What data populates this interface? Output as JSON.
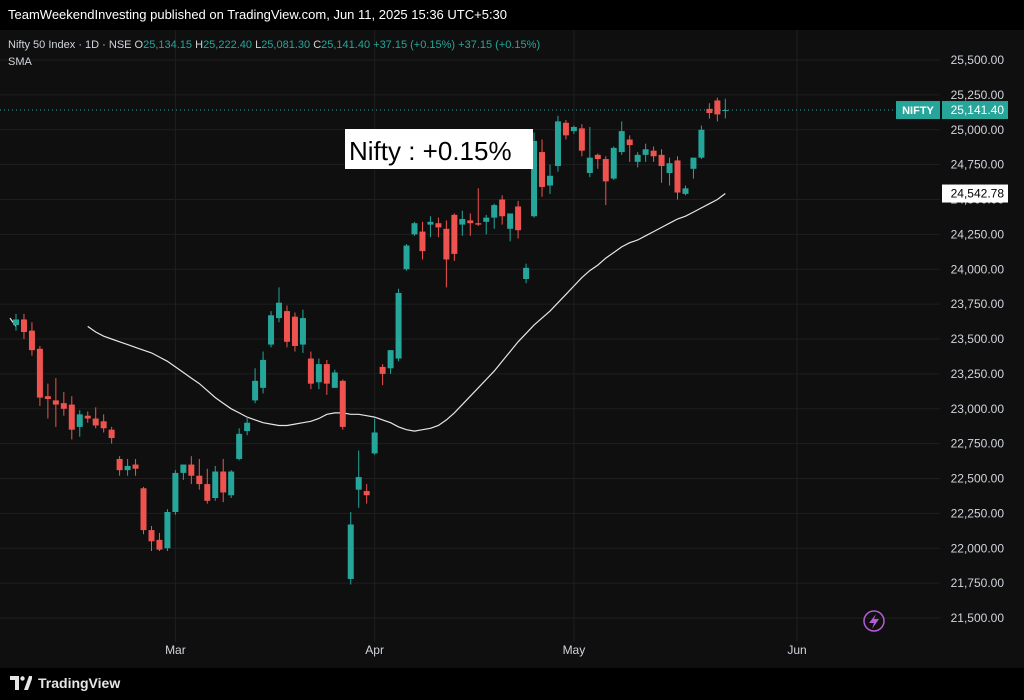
{
  "header": {
    "published_text": "TeamWeekendInvesting published on TradingView.com, Jun 11, 2025 15:36 UTC+5:30"
  },
  "legend": {
    "symbol": "Nifty 50 Index · 1D · NSE",
    "o_label": "O",
    "o_value": "25,134.15",
    "h_label": "H",
    "h_value": "25,222.40",
    "l_label": "L",
    "l_value": "25,081.30",
    "c_label": "C",
    "c_value": "25,141.40",
    "change": "+37.15 (+0.15%)",
    "change2": "+37.15 (+0.15%)",
    "indicator": "SMA"
  },
  "annotation": {
    "text": "Nifty : +0.15%"
  },
  "price_tags": {
    "symbol_label": "NIFTY",
    "last_price": "25,141.40",
    "sma_value": "24,542.78"
  },
  "footer": {
    "brand": "TradingView"
  },
  "colors": {
    "up": "#26a69a",
    "down": "#ef5350",
    "background": "#0f0f0f",
    "sma": "#e6e6e6",
    "grid": "#1f1f1f",
    "axis_text": "#d1d4dc",
    "last_price_tag": "#26a69a"
  },
  "icons": {
    "replay": "lightning-icon",
    "logo": "tradingview-logo-icon"
  },
  "chart_data": {
    "type": "candlestick",
    "title": "Nifty 50 Index · 1D · NSE",
    "ylim": [
      21400,
      25600
    ],
    "y_ticks": [
      21500,
      21750,
      22000,
      22250,
      22500,
      22750,
      23000,
      23250,
      23500,
      23750,
      24000,
      24250,
      24500,
      24750,
      25000,
      25250,
      25500
    ],
    "y_tick_labels": [
      "21,500.00",
      "21,750.00",
      "22,000.00",
      "22,250.00",
      "22,500.00",
      "22,750.00",
      "23,000.00",
      "23,250.00",
      "23,500.00",
      "23,750.00",
      "24,000.00",
      "24,250.00",
      "24,500.00",
      "24,750.00",
      "25,000.00",
      "25,250.00",
      "25,500.00"
    ],
    "x_ticks": [
      {
        "label": "Mar",
        "index": 20
      },
      {
        "label": "Apr",
        "index": 45
      },
      {
        "label": "May",
        "index": 70
      },
      {
        "label": "Jun",
        "index": 98
      }
    ],
    "grid": true,
    "candles": [
      [
        23600,
        23680,
        23560,
        23640
      ],
      [
        23640,
        23680,
        23500,
        23550
      ],
      [
        23560,
        23620,
        23380,
        23420
      ],
      [
        23430,
        23450,
        23020,
        23080
      ],
      [
        23090,
        23180,
        22930,
        23070
      ],
      [
        23060,
        23220,
        22870,
        23030
      ],
      [
        23040,
        23120,
        22950,
        23000
      ],
      [
        23030,
        23090,
        22780,
        22850
      ],
      [
        22870,
        22990,
        22800,
        22960
      ],
      [
        22950,
        22980,
        22900,
        22930
      ],
      [
        22930,
        23010,
        22860,
        22880
      ],
      [
        22910,
        22960,
        22830,
        22860
      ],
      [
        22850,
        22870,
        22750,
        22790
      ],
      [
        22640,
        22660,
        22520,
        22560
      ],
      [
        22560,
        22640,
        22520,
        22590
      ],
      [
        22600,
        22640,
        22520,
        22570
      ],
      [
        22430,
        22440,
        22100,
        22130
      ],
      [
        22130,
        22160,
        21980,
        22050
      ],
      [
        22060,
        22110,
        21980,
        21990
      ],
      [
        22000,
        22280,
        21980,
        22260
      ],
      [
        22260,
        22560,
        22240,
        22540
      ],
      [
        22540,
        22600,
        22490,
        22600
      ],
      [
        22600,
        22660,
        22460,
        22520
      ],
      [
        22520,
        22640,
        22420,
        22460
      ],
      [
        22460,
        22570,
        22320,
        22340
      ],
      [
        22360,
        22590,
        22340,
        22550
      ],
      [
        22550,
        22640,
        22330,
        22400
      ],
      [
        22380,
        22560,
        22360,
        22550
      ],
      [
        22640,
        22860,
        22630,
        22820
      ],
      [
        22840,
        22940,
        22810,
        22900
      ],
      [
        23060,
        23290,
        23040,
        23200
      ],
      [
        23150,
        23410,
        23110,
        23350
      ],
      [
        23460,
        23700,
        23440,
        23670
      ],
      [
        23650,
        23870,
        23620,
        23760
      ],
      [
        23700,
        23740,
        23440,
        23480
      ],
      [
        23660,
        23690,
        23410,
        23450
      ],
      [
        23460,
        23710,
        23400,
        23650
      ],
      [
        23360,
        23410,
        23140,
        23180
      ],
      [
        23190,
        23360,
        23140,
        23320
      ],
      [
        23320,
        23350,
        23100,
        23180
      ],
      [
        23150,
        23280,
        23150,
        23260
      ],
      [
        23200,
        23210,
        22850,
        22870
      ],
      [
        21780,
        22260,
        21740,
        22170
      ],
      [
        22420,
        22700,
        22290,
        22510
      ],
      [
        22410,
        22460,
        22320,
        22380
      ],
      [
        22680,
        22930,
        22670,
        22830
      ],
      [
        23300,
        23320,
        23170,
        23250
      ],
      [
        23290,
        23420,
        23250,
        23420
      ],
      [
        23360,
        23860,
        23340,
        23830
      ],
      [
        24000,
        24180,
        23990,
        24170
      ],
      [
        24250,
        24340,
        24240,
        24330
      ],
      [
        24270,
        24340,
        24070,
        24130
      ],
      [
        24320,
        24380,
        24230,
        24340
      ],
      [
        24330,
        24370,
        24230,
        24300
      ],
      [
        24290,
        24350,
        23870,
        24070
      ],
      [
        24390,
        24400,
        24060,
        24110
      ],
      [
        24320,
        24420,
        24240,
        24360
      ],
      [
        24350,
        24400,
        24240,
        24330
      ],
      [
        24330,
        24580,
        24310,
        24320
      ],
      [
        24340,
        24390,
        24250,
        24370
      ],
      [
        24370,
        24470,
        24290,
        24460
      ],
      [
        24500,
        24530,
        24320,
        24380
      ],
      [
        24290,
        24380,
        24200,
        24400
      ],
      [
        24450,
        24490,
        24220,
        24280
      ],
      [
        23930,
        24040,
        23900,
        24010
      ],
      [
        24380,
        24980,
        24370,
        24920
      ],
      [
        24840,
        24930,
        24520,
        24590
      ],
      [
        24600,
        24750,
        24540,
        24670
      ],
      [
        24740,
        25100,
        24700,
        25060
      ],
      [
        25050,
        25070,
        24930,
        24960
      ],
      [
        24990,
        25030,
        24970,
        25020
      ],
      [
        25010,
        25040,
        24810,
        24850
      ],
      [
        24690,
        25020,
        24660,
        24800
      ],
      [
        24820,
        24830,
        24720,
        24790
      ],
      [
        24790,
        24810,
        24460,
        24630
      ],
      [
        24650,
        24880,
        24640,
        24870
      ],
      [
        24840,
        25060,
        24820,
        24990
      ],
      [
        24930,
        24960,
        24770,
        24890
      ],
      [
        24770,
        24840,
        24730,
        24820
      ],
      [
        24820,
        24900,
        24770,
        24860
      ],
      [
        24850,
        24880,
        24770,
        24810
      ],
      [
        24820,
        24860,
        24620,
        24740
      ],
      [
        24690,
        24800,
        24600,
        24760
      ],
      [
        24780,
        24810,
        24500,
        24550
      ],
      [
        24540,
        24600,
        24530,
        24580
      ],
      [
        24720,
        24770,
        24650,
        24800
      ],
      [
        24800,
        25030,
        24790,
        25000
      ],
      [
        25150,
        25190,
        25080,
        25120
      ],
      [
        25210,
        25230,
        25060,
        25110
      ],
      [
        25134.15,
        25222.4,
        25081.3,
        25141.4
      ]
    ],
    "sma_series": {
      "name": "SMA",
      "values": [
        23590,
        23550,
        23520,
        23500,
        23480,
        23460,
        23440,
        23420,
        23400,
        23370,
        23340,
        23300,
        23260,
        23220,
        23180,
        23130,
        23080,
        23040,
        23000,
        22970,
        22940,
        22920,
        22900,
        22890,
        22880,
        22880,
        22890,
        22900,
        22910,
        22930,
        22960,
        22970,
        22970,
        22960,
        22960,
        22950,
        22940,
        22920,
        22900,
        22870,
        22850,
        22840,
        22850,
        22860,
        22880,
        22920,
        22970,
        23030,
        23090,
        23150,
        23210,
        23270,
        23340,
        23410,
        23480,
        23540,
        23600,
        23650,
        23700,
        23760,
        23820,
        23880,
        23940,
        23990,
        24030,
        24080,
        24120,
        24160,
        24190,
        24210,
        24240,
        24270,
        24300,
        24330,
        24360,
        24380,
        24410,
        24440,
        24470,
        24500,
        24542.78
      ]
    }
  }
}
